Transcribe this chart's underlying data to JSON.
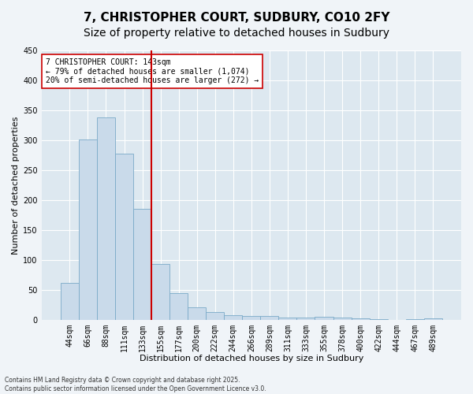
{
  "title": "7, CHRISTOPHER COURT, SUDBURY, CO10 2FY",
  "subtitle": "Size of property relative to detached houses in Sudbury",
  "xlabel": "Distribution of detached houses by size in Sudbury",
  "ylabel": "Number of detached properties",
  "footer_line1": "Contains HM Land Registry data © Crown copyright and database right 2025.",
  "footer_line2": "Contains public sector information licensed under the Open Government Licence v3.0.",
  "categories": [
    "44sqm",
    "66sqm",
    "88sqm",
    "111sqm",
    "133sqm",
    "155sqm",
    "177sqm",
    "200sqm",
    "222sqm",
    "244sqm",
    "266sqm",
    "289sqm",
    "311sqm",
    "333sqm",
    "355sqm",
    "378sqm",
    "400sqm",
    "422sqm",
    "444sqm",
    "467sqm",
    "489sqm"
  ],
  "values": [
    62,
    301,
    338,
    277,
    185,
    93,
    45,
    21,
    13,
    7,
    6,
    6,
    4,
    3,
    5,
    3,
    2,
    1,
    0,
    1,
    2
  ],
  "bar_color": "#c9daea",
  "bar_edge_color": "#7aaac8",
  "vline_color": "#cc0000",
  "annotation_text": "7 CHRISTOPHER COURT: 143sqm\n← 79% of detached houses are smaller (1,074)\n20% of semi-detached houses are larger (272) →",
  "annotation_box_facecolor": "#ffffff",
  "annotation_box_edgecolor": "#cc0000",
  "ylim": [
    0,
    450
  ],
  "yticks": [
    0,
    50,
    100,
    150,
    200,
    250,
    300,
    350,
    400,
    450
  ],
  "fig_background": "#f0f4f8",
  "plot_background": "#dde8f0",
  "grid_color": "#ffffff",
  "title_fontsize": 11,
  "tick_fontsize": 7,
  "label_fontsize": 8,
  "annotation_fontsize": 7,
  "footer_fontsize": 5.5
}
